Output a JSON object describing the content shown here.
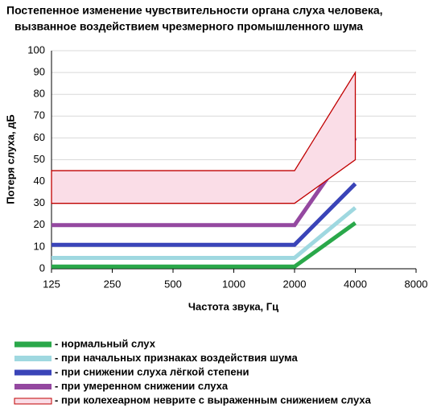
{
  "chart_data": {
    "type": "line",
    "title": [
      "Постепенное изменение чувствительности органа слуха человека,",
      "вызванное воздействием чрезмерного промышленного шума"
    ],
    "x_label": "Частота звука, Гц",
    "y_label": "Потеря слуха, дБ",
    "categories": [
      "125",
      "250",
      "500",
      "1000",
      "2000",
      "4000",
      "8000"
    ],
    "ylim": [
      0,
      100
    ],
    "yticks": [
      0,
      10,
      20,
      30,
      40,
      50,
      60,
      70,
      80,
      90,
      100
    ],
    "grid": true,
    "series": [
      {
        "name": "- нормальный слух",
        "color": "#2aa84a",
        "values": [
          1,
          1,
          1,
          1,
          1,
          21,
          null
        ]
      },
      {
        "name": "- при начальных признаках воздействия шума",
        "color": "#9fd8e0",
        "values": [
          5,
          5,
          5,
          5,
          5,
          28,
          null
        ]
      },
      {
        "name": "- при снижении слуха лёгкой степени",
        "color": "#3a44b8",
        "values": [
          11,
          11,
          11,
          11,
          11,
          39,
          null
        ]
      },
      {
        "name": "- при умеренном снижении слуха",
        "color": "#9448a0",
        "values": [
          20,
          20,
          20,
          20,
          20,
          60,
          null
        ]
      },
      {
        "name": "- при колехеарном неврите с выраженным снижением слуха",
        "color": "#c00000",
        "fill": "#fadde7",
        "type": "band",
        "low": [
          30,
          30,
          30,
          30,
          30,
          50,
          null
        ],
        "high": [
          45,
          45,
          45,
          45,
          45,
          90,
          null
        ]
      }
    ]
  }
}
